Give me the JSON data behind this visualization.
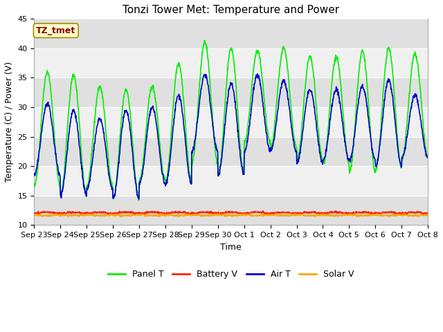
{
  "title": "Tonzi Tower Met: Temperature and Power",
  "xlabel": "Time",
  "ylabel": "Temperature (C) / Power (V)",
  "ylim": [
    10,
    45
  ],
  "yticks": [
    10,
    15,
    20,
    25,
    30,
    35,
    40,
    45
  ],
  "xtick_labels": [
    "Sep 23",
    "Sep 24",
    "Sep 25",
    "Sep 26",
    "Sep 27",
    "Sep 28",
    "Sep 29",
    "Sep 30",
    "Oct 1",
    "Oct 2",
    "Oct 3",
    "Oct 4",
    "Oct 5",
    "Oct 6",
    "Oct 7",
    "Oct 8"
  ],
  "annotation_text": "TZ_tmet",
  "annotation_color": "#8B0000",
  "annotation_box_color": "#FFFFCC",
  "annotation_box_edge": "#AA8800",
  "panel_t_color": "#00EE00",
  "battery_v_color": "#FF2200",
  "air_t_color": "#0000CC",
  "solar_v_color": "#FFA500",
  "fig_bg_color": "#FFFFFF",
  "plot_bg_color": "#FFFFFF",
  "band_dark_color": "#E0E0E0",
  "band_light_color": "#F0F0F0",
  "legend_labels": [
    "Panel T",
    "Battery V",
    "Air T",
    "Solar V"
  ],
  "title_fontsize": 11,
  "label_fontsize": 9,
  "tick_fontsize": 8,
  "num_days": 15,
  "points_per_day": 96,
  "panel_peaks": [
    36,
    35.5,
    33.5,
    33,
    33.5,
    37.5,
    41,
    40,
    39.5,
    40,
    38.5,
    38.5,
    39.5,
    40,
    39
  ],
  "panel_troughs": [
    16.5,
    15,
    16.5,
    14.5,
    17.5,
    17.5,
    20.5,
    18.5,
    24,
    23,
    21,
    20.5,
    19,
    19.5,
    21.5
  ],
  "air_peaks": [
    30.5,
    29.5,
    28,
    29.5,
    30,
    32,
    35.5,
    34,
    35.5,
    34.5,
    33,
    33,
    33.5,
    34.5,
    32
  ],
  "air_troughs": [
    18.5,
    15,
    16,
    14.5,
    17,
    17,
    22.5,
    18.5,
    22.5,
    22.5,
    20.5,
    21,
    21,
    20,
    21.5
  ],
  "battery_v_base": 12.0,
  "solar_v_base": 11.7,
  "line_width": 1.2
}
